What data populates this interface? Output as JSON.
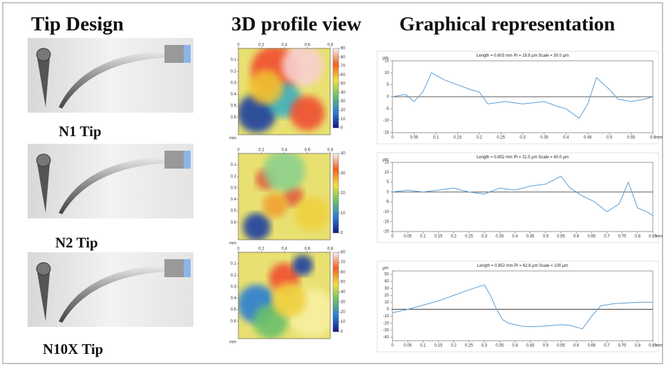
{
  "headers": [
    "Tip Design",
    "3D profile view",
    "Graphical representation"
  ],
  "tips": [
    "N1 Tip",
    "N2 Tip",
    "N10X Tip"
  ],
  "heatmaps": {
    "xticks": [
      0,
      0.2,
      0.4,
      0.6,
      0.8
    ],
    "yticks": [
      0.1,
      0.2,
      0.3,
      0.4,
      0.5,
      0.6
    ],
    "unit": "mm",
    "colorbars": [
      {
        "ticks": [
          0,
          10,
          20,
          30,
          40,
          50,
          60,
          70,
          80,
          90
        ],
        "lim": [
          0,
          90
        ]
      },
      {
        "ticks": [
          0,
          10,
          20,
          30,
          40
        ],
        "lim": [
          0,
          40
        ]
      },
      {
        "ticks": [
          0,
          10,
          20,
          30,
          40,
          50,
          60,
          70,
          80
        ],
        "lim": [
          0,
          80
        ]
      }
    ]
  },
  "graphs": [
    {
      "type": "line",
      "title": "Length = 0.603 mm  Pt = 19.8 µm  Scale = 30.0 µm",
      "y_unit": "µm",
      "x_unit": "mm",
      "color": "#5b9bd5",
      "x": [
        0,
        0.03,
        0.05,
        0.07,
        0.09,
        0.12,
        0.15,
        0.18,
        0.2,
        0.22,
        0.26,
        0.3,
        0.35,
        0.38,
        0.4,
        0.43,
        0.45,
        0.47,
        0.5,
        0.52,
        0.55,
        0.58,
        0.6
      ],
      "values": [
        0,
        1,
        -2,
        2,
        10,
        7,
        5,
        3,
        2,
        -3,
        -2,
        -3,
        -2,
        -4,
        -5,
        -9,
        -3,
        8,
        3,
        -1,
        -2,
        -1,
        0
      ],
      "xlim": [
        0,
        0.6
      ],
      "ylim": [
        -15,
        15
      ],
      "xticks": [
        0,
        0.05,
        0.1,
        0.15,
        0.2,
        0.25,
        0.3,
        0.35,
        0.4,
        0.45,
        0.5,
        0.55,
        0.6
      ],
      "yticks": [
        -15,
        -10,
        -5,
        0,
        5,
        10,
        15
      ]
    },
    {
      "type": "line",
      "title": "Length = 0.852 mm  Pt = 21.5 µm  Scale = 40.0 µm",
      "y_unit": "µm",
      "x_unit": "mm",
      "color": "#5b9bd5",
      "x": [
        0,
        0.05,
        0.1,
        0.15,
        0.2,
        0.25,
        0.3,
        0.35,
        0.4,
        0.45,
        0.5,
        0.55,
        0.58,
        0.62,
        0.66,
        0.7,
        0.74,
        0.77,
        0.8,
        0.83,
        0.85
      ],
      "values": [
        0,
        1,
        0,
        1,
        2,
        0,
        -1,
        2,
        1,
        3,
        4,
        8,
        2,
        -2,
        -5,
        -10,
        -6,
        5,
        -8,
        -10,
        -12
      ],
      "xlim": [
        0,
        0.85
      ],
      "ylim": [
        -20,
        15
      ],
      "xticks": [
        0,
        0.05,
        0.1,
        0.15,
        0.2,
        0.25,
        0.3,
        0.35,
        0.4,
        0.45,
        0.5,
        0.55,
        0.6,
        0.65,
        0.7,
        0.75,
        0.8,
        0.85
      ],
      "yticks": [
        -20,
        -15,
        -10,
        -5,
        0,
        5,
        10,
        15
      ]
    },
    {
      "type": "line",
      "title": "Length = 0.852 mm  Pt = 62.6 µm  Scale = 100 µm",
      "y_unit": "µm",
      "x_unit": "mm",
      "color": "#5b9bd5",
      "x": [
        0,
        0.05,
        0.1,
        0.15,
        0.2,
        0.25,
        0.3,
        0.32,
        0.34,
        0.36,
        0.38,
        0.42,
        0.45,
        0.5,
        0.55,
        0.58,
        0.62,
        0.65,
        0.68,
        0.72,
        0.76,
        0.8,
        0.85
      ],
      "values": [
        -5,
        0,
        6,
        12,
        20,
        28,
        35,
        20,
        0,
        -15,
        -20,
        -24,
        -25,
        -24,
        -22,
        -23,
        -28,
        -10,
        5,
        8,
        9,
        10,
        10
      ],
      "xlim": [
        0,
        0.85
      ],
      "ylim": [
        -45,
        55
      ],
      "xticks": [
        0,
        0.05,
        0.1,
        0.15,
        0.2,
        0.25,
        0.3,
        0.35,
        0.4,
        0.45,
        0.5,
        0.55,
        0.6,
        0.65,
        0.7,
        0.75,
        0.8,
        0.85
      ],
      "yticks": [
        -40,
        -30,
        -20,
        -10,
        0,
        10,
        20,
        30,
        40,
        50
      ]
    }
  ]
}
